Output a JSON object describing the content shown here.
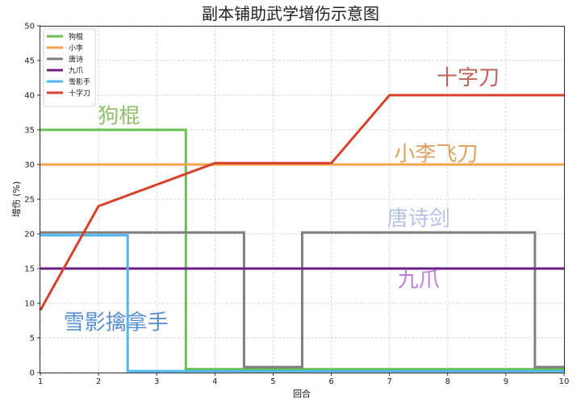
{
  "chart_data": {
    "type": "line",
    "title": "副本铺助武学增伤示意图",
    "xlabel": "回合",
    "ylabel": "增伤 (%)",
    "xlim": [
      1,
      10
    ],
    "ylim": [
      0,
      50
    ],
    "xticks": [
      1,
      2,
      3,
      4,
      5,
      6,
      7,
      8,
      9,
      10
    ],
    "yticks": [
      0,
      5,
      10,
      15,
      20,
      25,
      30,
      35,
      40,
      45,
      50
    ],
    "grid": true,
    "legend_position": "top-left",
    "series": [
      {
        "name": "狗棍",
        "color": "#66c24e",
        "points": [
          [
            1,
            35
          ],
          [
            3.5,
            35
          ],
          [
            3.5,
            0.5
          ],
          [
            10,
            0.5
          ]
        ]
      },
      {
        "name": "小李",
        "color": "#f0a54a",
        "points": [
          [
            1,
            30
          ],
          [
            10,
            30
          ]
        ]
      },
      {
        "name": "唐诗",
        "color": "#808080",
        "points": [
          [
            1,
            20.2
          ],
          [
            4.5,
            20.2
          ],
          [
            4.5,
            0.8
          ],
          [
            5.5,
            0.8
          ],
          [
            5.5,
            20.2
          ],
          [
            9.5,
            20.2
          ],
          [
            9.5,
            0.8
          ],
          [
            10,
            0.8
          ]
        ]
      },
      {
        "name": "九爪",
        "color": "#6b1f86",
        "points": [
          [
            1,
            15
          ],
          [
            10,
            15
          ]
        ]
      },
      {
        "name": "雪影手",
        "color": "#4fb6ee",
        "points": [
          [
            1,
            19.8
          ],
          [
            2.5,
            19.8
          ],
          [
            2.5,
            0.2
          ],
          [
            10,
            0.2
          ]
        ]
      },
      {
        "name": "十字刀",
        "color": "#d9402c",
        "points": [
          [
            1,
            9
          ],
          [
            2,
            24
          ],
          [
            4,
            30.2
          ],
          [
            6,
            30.2
          ],
          [
            7,
            40
          ],
          [
            10,
            40
          ]
        ]
      }
    ],
    "annotations": [
      {
        "text": "狗棍",
        "x": 2.35,
        "y": 36,
        "color": "#8fbf6a"
      },
      {
        "text": "小李飞刀",
        "x": 7.8,
        "y": 30.5,
        "color": "#e0a060"
      },
      {
        "text": "唐诗剑",
        "x": 7.5,
        "y": 21.2,
        "color": "#b4c2e6"
      },
      {
        "text": "九爪",
        "x": 7.5,
        "y": 12.4,
        "color": "#c07ce0"
      },
      {
        "text": "雪影擒拿手",
        "x": 2.3,
        "y": 6.2,
        "color": "#5a8fd6"
      },
      {
        "text": "十字刀",
        "x": 8.35,
        "y": 41.5,
        "color": "#c0625a"
      }
    ]
  }
}
